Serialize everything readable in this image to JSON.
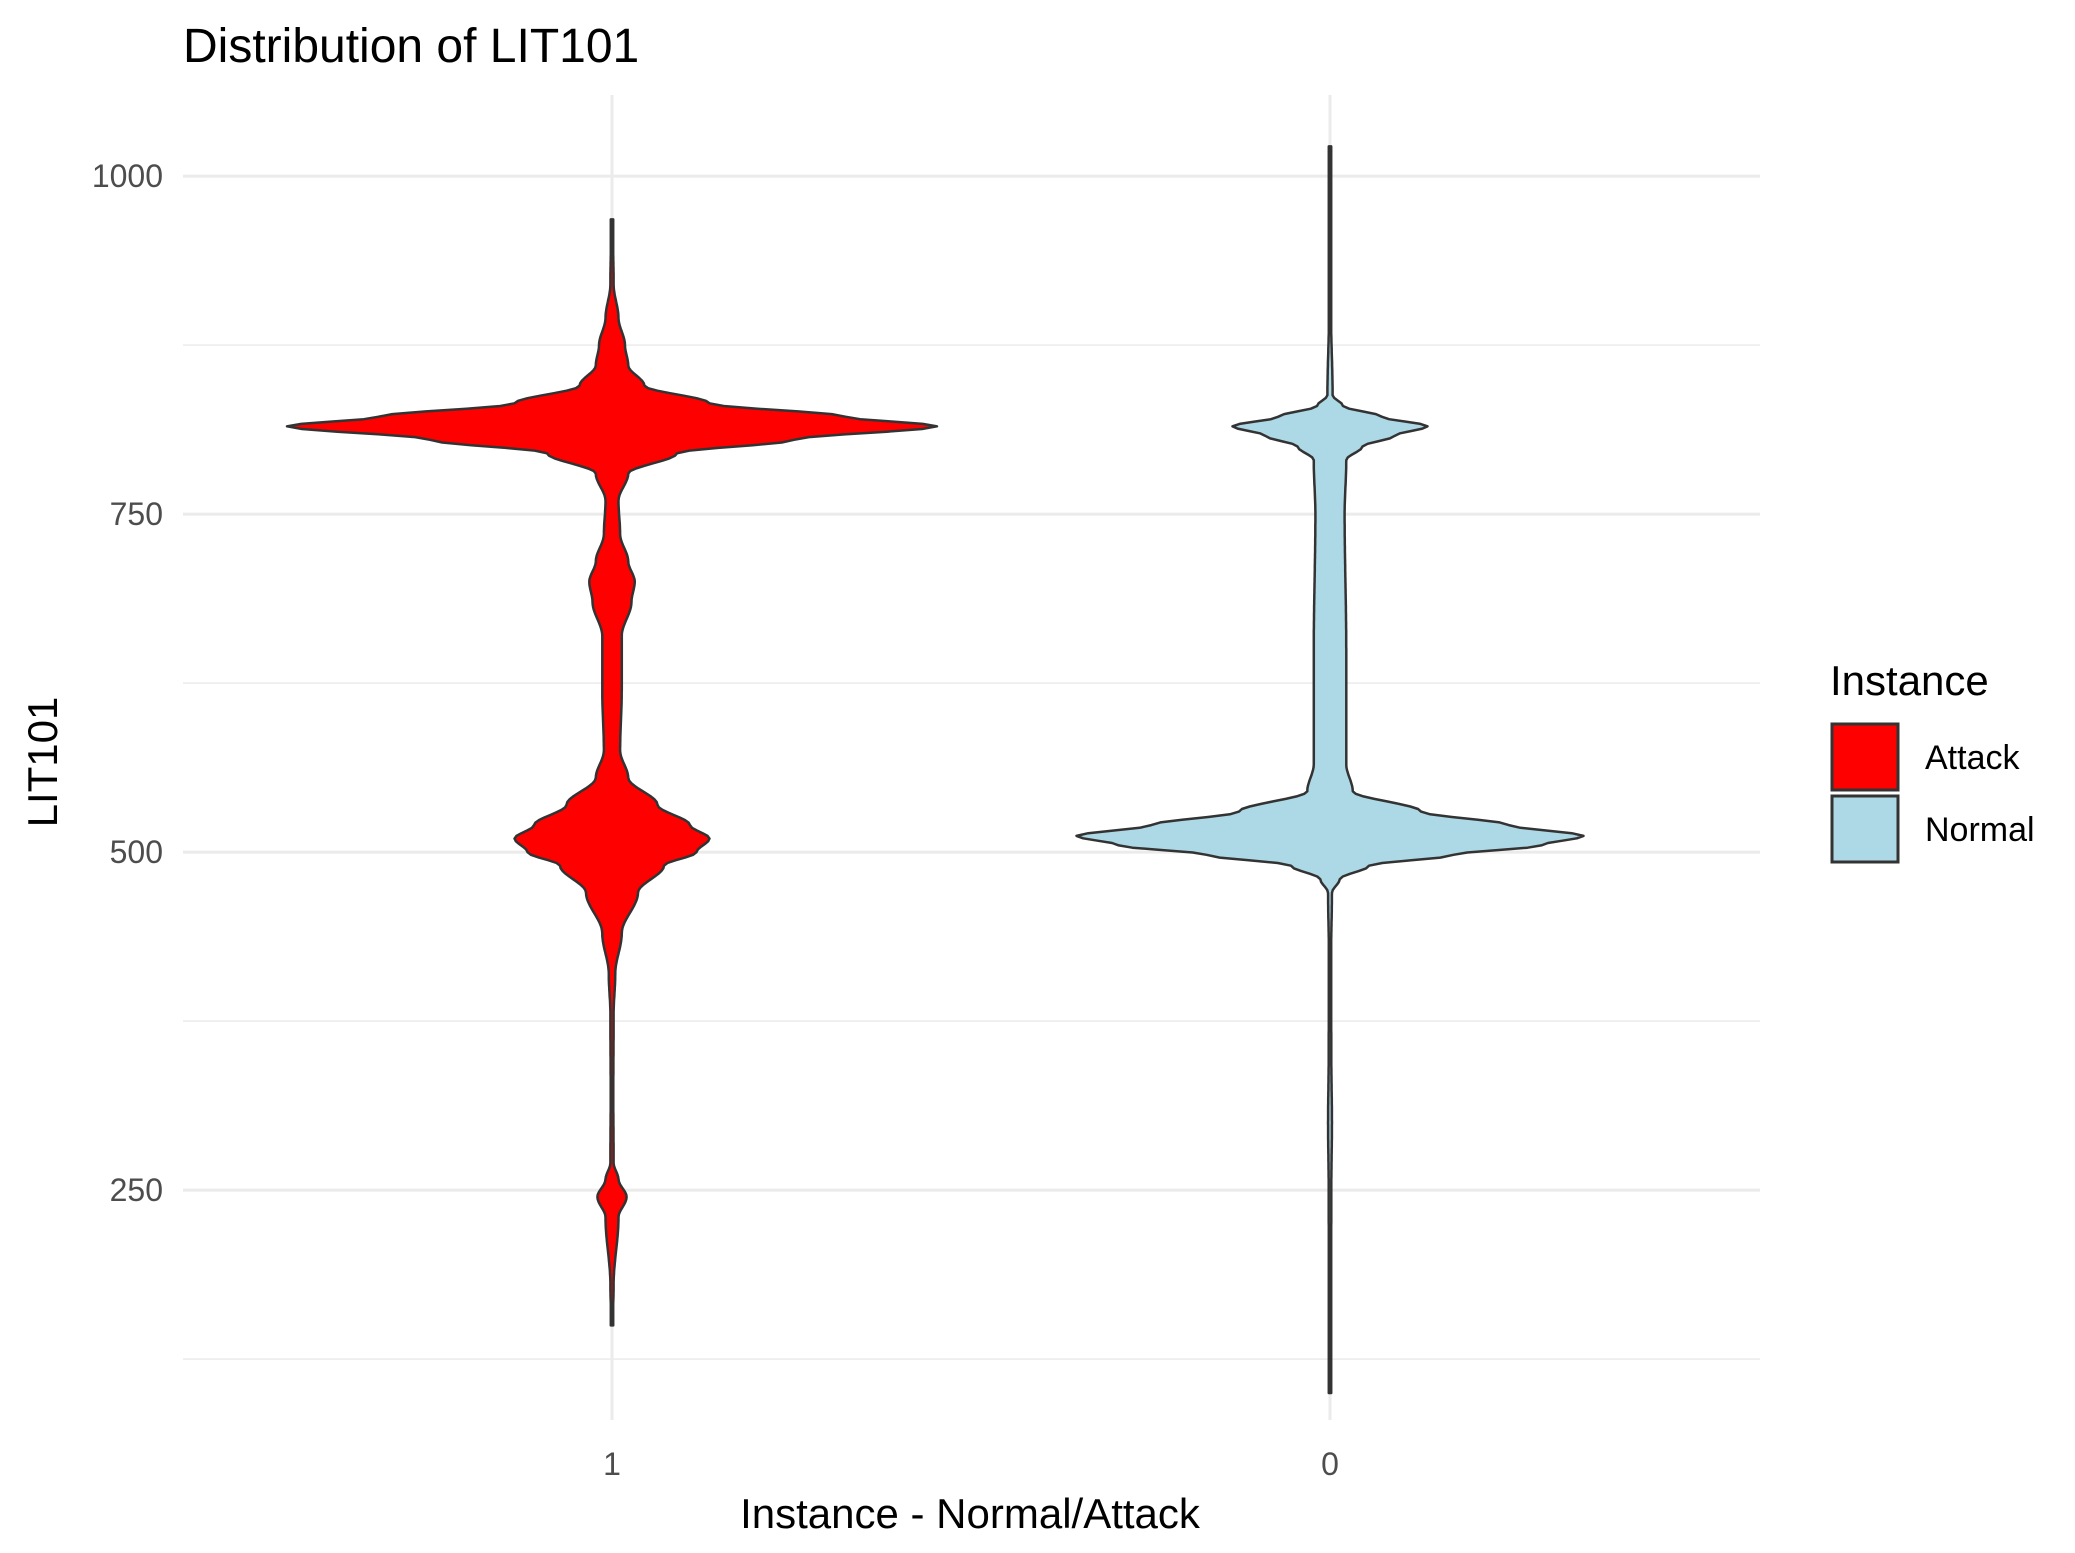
{
  "chart_data": {
    "type": "violin",
    "title": "Distribution of LIT101",
    "xlabel": "Instance - Normal/Attack",
    "ylabel": "LIT101",
    "categories": [
      "1",
      "0"
    ],
    "y_ticks": [
      250,
      500,
      750,
      1000
    ],
    "ylim": [
      80,
      1060
    ],
    "grid": true,
    "legend": {
      "title": "Instance",
      "position": "right",
      "entries": [
        {
          "label": "Attack",
          "color": "#ff0000"
        },
        {
          "label": "Normal",
          "color": "#add8e6"
        }
      ]
    },
    "series": [
      {
        "category": "1",
        "group": "Attack",
        "color": "#ff0000",
        "min": 150,
        "max": 968,
        "density": [
          [
            150,
            0.002
          ],
          [
            180,
            0.005
          ],
          [
            230,
            0.02
          ],
          [
            245,
            0.045
          ],
          [
            258,
            0.02
          ],
          [
            270,
            0.005
          ],
          [
            320,
            0.004
          ],
          [
            380,
            0.005
          ],
          [
            410,
            0.01
          ],
          [
            440,
            0.03
          ],
          [
            470,
            0.08
          ],
          [
            490,
            0.16
          ],
          [
            500,
            0.26
          ],
          [
            510,
            0.3
          ],
          [
            520,
            0.24
          ],
          [
            535,
            0.14
          ],
          [
            555,
            0.05
          ],
          [
            575,
            0.025
          ],
          [
            620,
            0.03
          ],
          [
            660,
            0.03
          ],
          [
            685,
            0.06
          ],
          [
            700,
            0.07
          ],
          [
            715,
            0.05
          ],
          [
            735,
            0.025
          ],
          [
            760,
            0.02
          ],
          [
            780,
            0.05
          ],
          [
            795,
            0.2
          ],
          [
            805,
            0.56
          ],
          [
            815,
            1.0
          ],
          [
            822,
            0.72
          ],
          [
            832,
            0.3
          ],
          [
            845,
            0.1
          ],
          [
            860,
            0.05
          ],
          [
            875,
            0.04
          ],
          [
            895,
            0.02
          ],
          [
            920,
            0.005
          ],
          [
            968,
            0.002
          ]
        ]
      },
      {
        "category": "0",
        "group": "Normal",
        "color": "#add8e6",
        "min": 100,
        "max": 1022,
        "density": [
          [
            100,
            0.002
          ],
          [
            150,
            0.003
          ],
          [
            250,
            0.004
          ],
          [
            300,
            0.006
          ],
          [
            350,
            0.004
          ],
          [
            420,
            0.003
          ],
          [
            470,
            0.006
          ],
          [
            480,
            0.03
          ],
          [
            490,
            0.12
          ],
          [
            498,
            0.38
          ],
          [
            505,
            0.65
          ],
          [
            512,
            0.78
          ],
          [
            520,
            0.55
          ],
          [
            530,
            0.28
          ],
          [
            545,
            0.07
          ],
          [
            565,
            0.05
          ],
          [
            650,
            0.05
          ],
          [
            750,
            0.045
          ],
          [
            790,
            0.05
          ],
          [
            800,
            0.1
          ],
          [
            808,
            0.2
          ],
          [
            815,
            0.3
          ],
          [
            822,
            0.16
          ],
          [
            830,
            0.04
          ],
          [
            838,
            0.008
          ],
          [
            900,
            0.003
          ],
          [
            1022,
            0.002
          ]
        ]
      }
    ]
  }
}
